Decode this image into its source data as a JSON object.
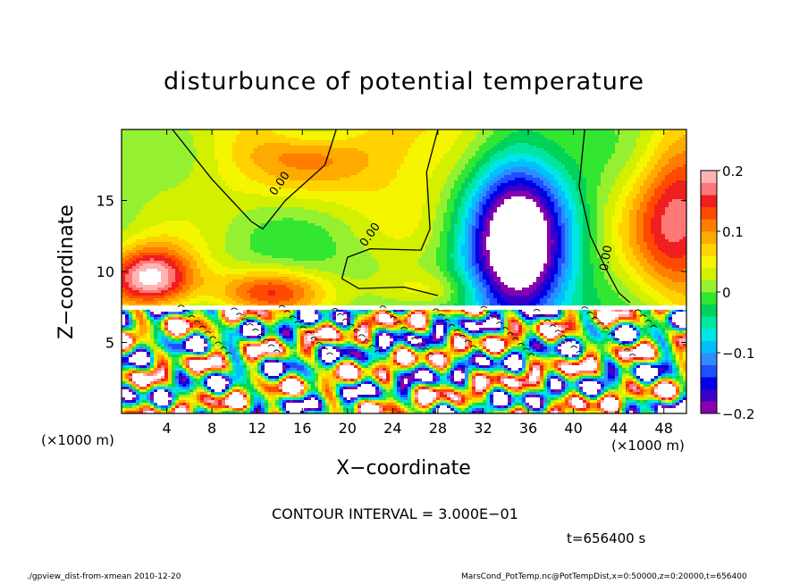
{
  "chart_data": {
    "type": "heatmap",
    "title": "disturbunce of potential temperature",
    "xlabel": "X−coordinate",
    "ylabel": "Z−coordinate",
    "x_unit_left": "(×1000 m)",
    "x_unit_right": "(×1000 m)",
    "xlim": [
      0,
      50
    ],
    "ylim": [
      0,
      20
    ],
    "x_ticks": [
      4,
      8,
      12,
      16,
      20,
      24,
      28,
      32,
      36,
      40,
      44,
      48
    ],
    "y_ticks": [
      5,
      10,
      15
    ],
    "colorbar": {
      "min": -0.2,
      "max": 0.2,
      "ticks": [
        0.2,
        0.1,
        0,
        -0.1,
        -0.2
      ],
      "tick_labels": [
        "0.2",
        "0.1",
        "0",
        "−0.1",
        "−0.2"
      ],
      "colors": [
        "#8a00b0",
        "#3a00c8",
        "#0000e6",
        "#1e50ff",
        "#2e8cff",
        "#00bfff",
        "#00e6e6",
        "#00e6a0",
        "#00d25a",
        "#32e632",
        "#96f032",
        "#d2f000",
        "#f5f500",
        "#ffd200",
        "#ffaa00",
        "#ff7d00",
        "#ff4b00",
        "#f01e1e",
        "#ff7878",
        "#ffb4b4"
      ]
    },
    "contour_labels": [
      "0.00",
      "0.00",
      "0.00"
    ],
    "contour_interval": "CONTOUR INTERVAL = 3.000E−01",
    "time": "t=656400 s"
  },
  "footer": {
    "left": "./gpview_dist-from-xmean  2010-12-20",
    "right": "MarsCond_PotTemp.nc@PotTempDist,x=0:50000,z=0:20000,t=656400"
  }
}
